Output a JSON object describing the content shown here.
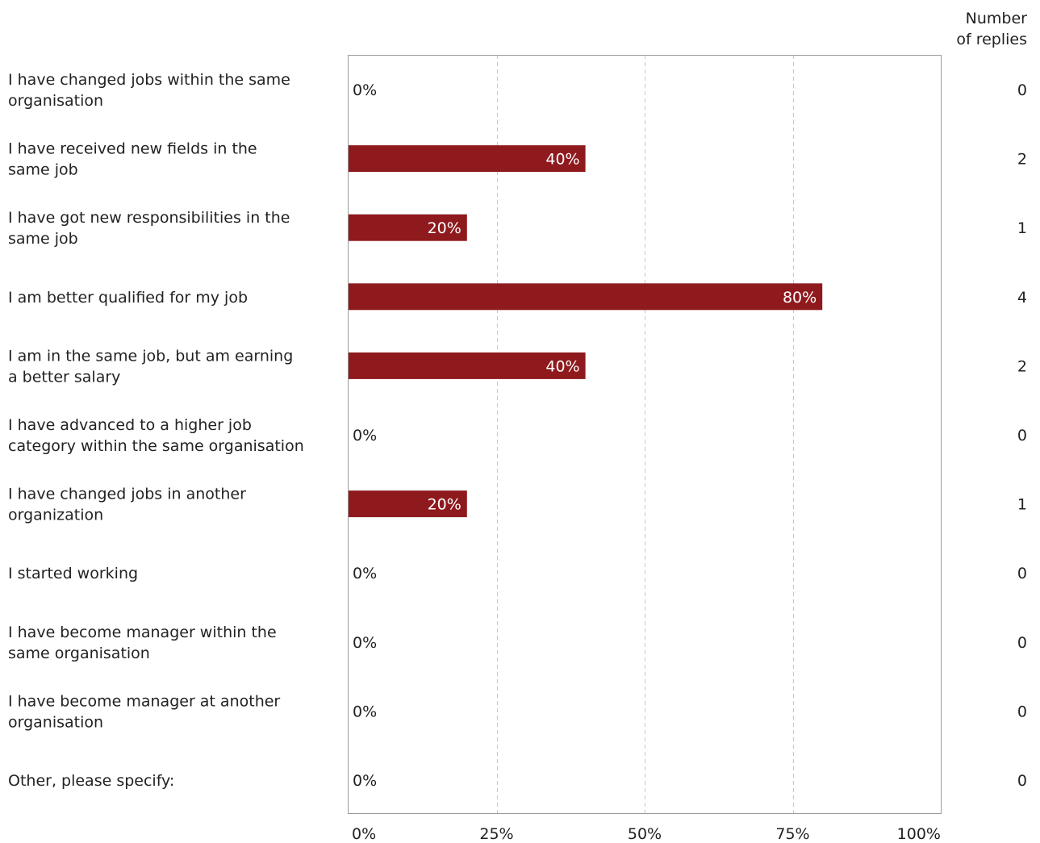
{
  "chart_data": {
    "type": "bar",
    "orientation": "horizontal",
    "categories": [
      [
        "I have changed jobs within the same",
        "organisation"
      ],
      [
        "I have received new fields in the",
        "same job"
      ],
      [
        "I have got new responsibilities in the",
        "same job"
      ],
      [
        "I am better qualified for my job"
      ],
      [
        "I am in the same job, but am earning",
        "a better salary"
      ],
      [
        "I have advanced to a higher job",
        "category within the same organisation"
      ],
      [
        "I have changed jobs in another",
        "organization"
      ],
      [
        "I started working"
      ],
      [
        "I have become manager within the",
        "same organisation"
      ],
      [
        "I have become manager at another",
        "organisation"
      ],
      [
        "Other, please specify:"
      ]
    ],
    "values": [
      0,
      40,
      20,
      80,
      40,
      0,
      20,
      0,
      0,
      0,
      0
    ],
    "value_labels": [
      "0%",
      "40%",
      "20%",
      "80%",
      "40%",
      "0%",
      "20%",
      "0%",
      "0%",
      "0%",
      "0%"
    ],
    "counts": [
      "0",
      "2",
      "1",
      "4",
      "2",
      "0",
      "1",
      "0",
      "0",
      "0",
      "0"
    ],
    "count_header": [
      "Number",
      "of replies"
    ],
    "xlim": [
      0,
      100
    ],
    "xticks": [
      0,
      25,
      50,
      75,
      100
    ],
    "xtick_labels": [
      "0%",
      "25%",
      "50%",
      "75%",
      "100%"
    ],
    "grid": true,
    "bar_color": "#8e1a1e",
    "title": "",
    "xlabel": "",
    "ylabel": ""
  }
}
